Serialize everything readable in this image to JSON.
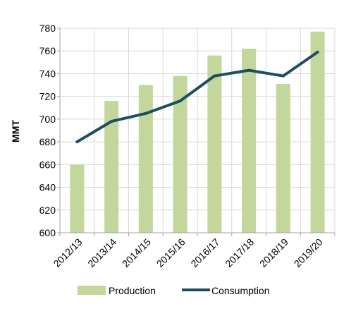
{
  "chart_data": {
    "type": "bar",
    "categories": [
      "2012/13",
      "2013/14",
      "2014/15",
      "2015/16",
      "2016/17",
      "2017/18",
      "2018/19",
      "2019/20"
    ],
    "series": [
      {
        "name": "Production",
        "type": "bar",
        "color": "#c3d69b",
        "values": [
          660,
          716,
          730,
          738,
          756,
          762,
          731,
          777
        ]
      },
      {
        "name": "Consumption",
        "type": "line",
        "color": "#1f4e5f",
        "values": [
          680,
          698,
          705,
          716,
          738,
          743,
          738,
          759
        ]
      }
    ],
    "title": "",
    "xlabel": "",
    "ylabel": "MMT",
    "ylim": [
      600,
      780
    ],
    "yticks": [
      600,
      620,
      640,
      660,
      680,
      700,
      720,
      740,
      760,
      780
    ],
    "grid": true,
    "legend_position": "bottom"
  }
}
